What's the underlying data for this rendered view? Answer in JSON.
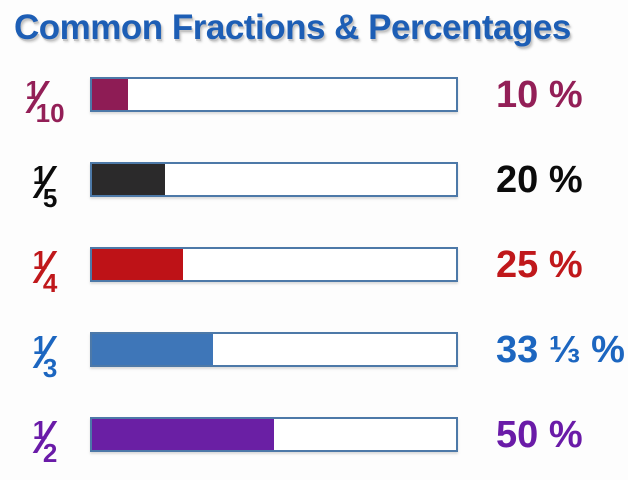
{
  "title": "Common Fractions & Percentages",
  "colors": {
    "title_text": "#1d5eb5",
    "background": "#fdfdfd",
    "bar_border": "#4d79a8",
    "bar_empty_fill": "#ffffff"
  },
  "chart_data": {
    "type": "bar",
    "orientation": "horizontal",
    "title": "Common Fractions & Percentages",
    "categories": [
      "1/10",
      "1/5",
      "1/4",
      "1/3",
      "1/2"
    ],
    "values": [
      10,
      20,
      25,
      33.33,
      50
    ],
    "xlim": [
      0,
      100
    ],
    "grid": false,
    "legend": false,
    "value_labels": [
      "10 %",
      "20 %",
      "25 %",
      "33 ⅓ %",
      "50 %"
    ],
    "bar_colors": [
      "#8e1c55",
      "#2b2a2b",
      "#be1217",
      "#3e76b8",
      "#6a1fa4"
    ]
  },
  "rows": [
    {
      "fraction": {
        "numerator": "1",
        "slash": "⁄",
        "denominator": "10"
      },
      "percent": 10,
      "percent_label": "10 %",
      "fill_color": "#8e1c55",
      "text_color": "#931f57"
    },
    {
      "fraction": {
        "numerator": "1",
        "slash": "⁄",
        "denominator": "5"
      },
      "percent": 20,
      "percent_label": "20 %",
      "fill_color": "#2b2a2b",
      "text_color": "#0b0b0b"
    },
    {
      "fraction": {
        "numerator": "1",
        "slash": "⁄",
        "denominator": "4"
      },
      "percent": 25,
      "percent_label": "25 %",
      "fill_color": "#be1217",
      "text_color": "#c0181b"
    },
    {
      "fraction": {
        "numerator": "1",
        "slash": "⁄",
        "denominator": "3"
      },
      "percent": 33.33,
      "percent_label": "33 ⅓ %",
      "fill_color": "#3e76b8",
      "text_color": "#1c66c0"
    },
    {
      "fraction": {
        "numerator": "1",
        "slash": "⁄",
        "denominator": "2"
      },
      "percent": 50,
      "percent_label": "50 %",
      "fill_color": "#6a1fa4",
      "text_color": "#6a1ba8"
    }
  ]
}
